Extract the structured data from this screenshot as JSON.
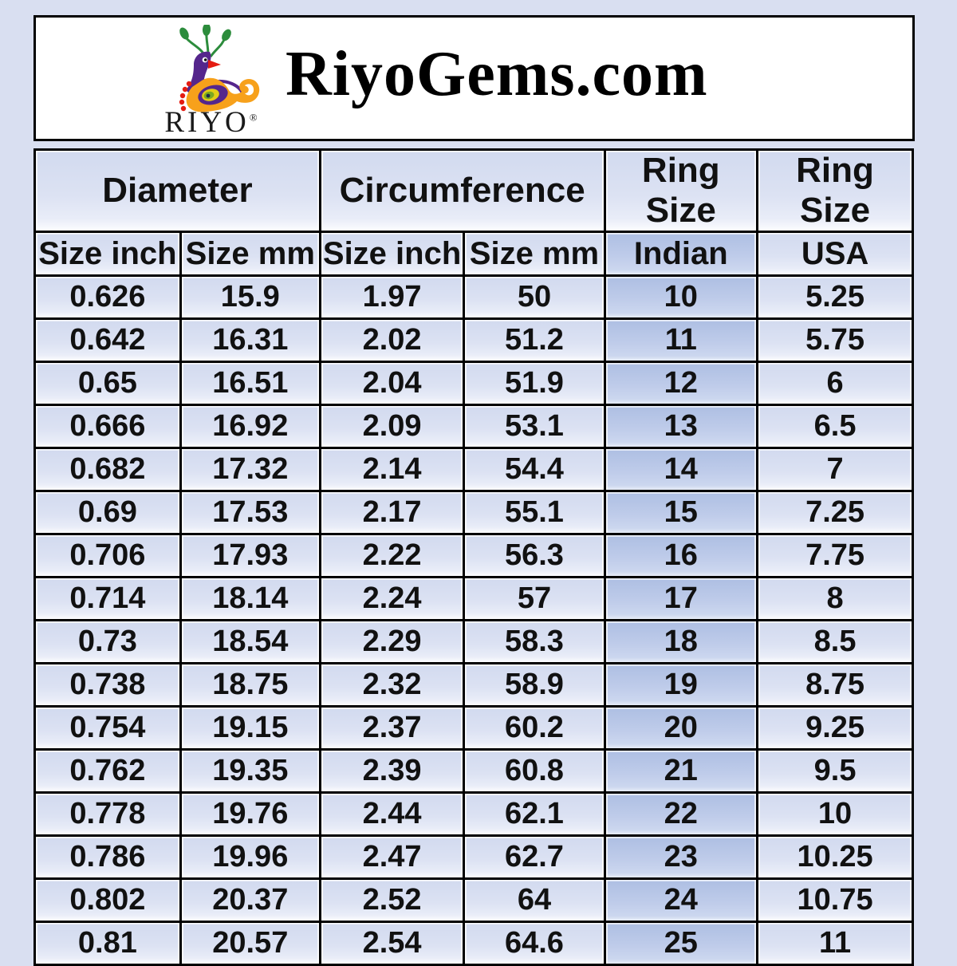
{
  "header": {
    "title": "RiyoGems.com",
    "logo_text": "RIYO",
    "logo_reg": "®",
    "logo_icon": "peacock-icon"
  },
  "table": {
    "groups": [
      {
        "label": "Diameter",
        "span": 2
      },
      {
        "label": "Circumference",
        "span": 2
      },
      {
        "label": "Ring Size",
        "span": 1
      },
      {
        "label": "Ring Size",
        "span": 1
      }
    ],
    "subheaders": [
      "Size inch",
      "Size mm",
      "Size inch",
      "Size mm",
      "Indian",
      "USA"
    ],
    "highlighted_subheader": "Indian",
    "rows": [
      [
        "0.626",
        "15.9",
        "1.97",
        "50",
        "10",
        "5.25"
      ],
      [
        "0.642",
        "16.31",
        "2.02",
        "51.2",
        "11",
        "5.75"
      ],
      [
        "0.65",
        "16.51",
        "2.04",
        "51.9",
        "12",
        "6"
      ],
      [
        "0.666",
        "16.92",
        "2.09",
        "53.1",
        "13",
        "6.5"
      ],
      [
        "0.682",
        "17.32",
        "2.14",
        "54.4",
        "14",
        "7"
      ],
      [
        "0.69",
        "17.53",
        "2.17",
        "55.1",
        "15",
        "7.25"
      ],
      [
        "0.706",
        "17.93",
        "2.22",
        "56.3",
        "16",
        "7.75"
      ],
      [
        "0.714",
        "18.14",
        "2.24",
        "57",
        "17",
        "8"
      ],
      [
        "0.73",
        "18.54",
        "2.29",
        "58.3",
        "18",
        "8.5"
      ],
      [
        "0.738",
        "18.75",
        "2.32",
        "58.9",
        "19",
        "8.75"
      ],
      [
        "0.754",
        "19.15",
        "2.37",
        "60.2",
        "20",
        "9.25"
      ],
      [
        "0.762",
        "19.35",
        "2.39",
        "60.8",
        "21",
        "9.5"
      ],
      [
        "0.778",
        "19.76",
        "2.44",
        "62.1",
        "22",
        "10"
      ],
      [
        "0.786",
        "19.96",
        "2.47",
        "62.7",
        "23",
        "10.25"
      ],
      [
        "0.802",
        "20.37",
        "2.52",
        "64",
        "24",
        "10.75"
      ],
      [
        "0.81",
        "20.57",
        "2.54",
        "64.6",
        "25",
        "11"
      ]
    ]
  },
  "colors": {
    "page_background": "#d9dff1",
    "cell_light": "#dce2f3",
    "cell_indian": "#bfccea",
    "border": "#000000",
    "banner_background": "#ffffff",
    "logo_purple": "#55268c",
    "logo_orange": "#f7a11b",
    "logo_green": "#2c8c3c",
    "logo_red": "#e41c12"
  }
}
